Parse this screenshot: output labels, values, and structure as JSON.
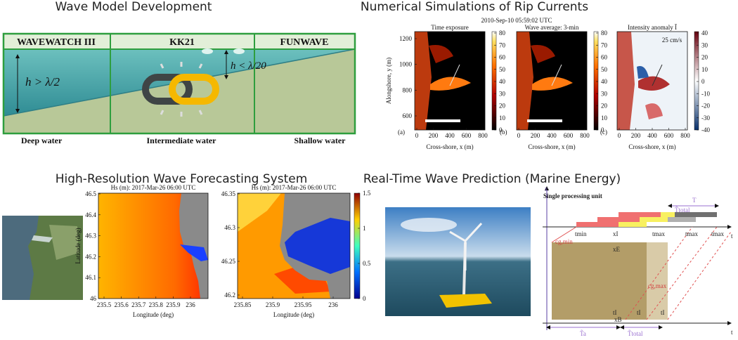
{
  "panels": {
    "wave_model": {
      "title": "Wave Model Development",
      "columns": [
        "WAVEWATCH III",
        "KK21",
        "FUNWAVE"
      ],
      "depth_labels": [
        "h > λ/2",
        "h < λ/20"
      ],
      "zones": [
        "Deep water",
        "Intermediate water",
        "Shallow water"
      ]
    },
    "rip_currents": {
      "title": "Numerical Simulations of Rip Currents",
      "timestamp": "2010-Sep-10 05:59:02 UTC",
      "subplots": [
        {
          "title": "Time exposure",
          "letter": "(a)"
        },
        {
          "title": "Wave average: 3-min",
          "letter": "(b)"
        },
        {
          "title": "Intensity anomaly Ī",
          "letter": "(c)"
        }
      ],
      "y_label": "Alongshore, y (m)",
      "x_label": "Cross-shore, x (m)",
      "yticks": [
        600,
        800,
        1000,
        1200
      ],
      "xticks": [
        0,
        200,
        400,
        600,
        800
      ],
      "colorbar_ticks": [
        0,
        10,
        20,
        30,
        40,
        50,
        60,
        70,
        80
      ],
      "anomaly_ticks": [
        -40,
        -30,
        -20,
        -10,
        0,
        10,
        20,
        30,
        40
      ],
      "scale_label": "25 cm/s"
    },
    "forecast": {
      "title": "High-Resolution Wave Forecasting System",
      "map1": {
        "title": "Hs (m): 2017-Mar-26 06:00 UTC",
        "y_label": "Latitude (deg)",
        "x_label": "Longitude (deg)",
        "yticks": [
          46,
          46.1,
          46.2,
          46.3,
          46.4,
          46.5
        ],
        "xticks": [
          235.5,
          235.6,
          235.7,
          235.8,
          235.9,
          236
        ]
      },
      "map2": {
        "title": "Hs (m): 2017-Mar-26 06:00 UTC",
        "x_label": "Longitude (deg)",
        "yticks": [
          46.2,
          46.25,
          46.3,
          46.35
        ],
        "xticks": [
          235.85,
          235.9,
          235.95,
          236
        ],
        "colorbar_ticks": [
          0,
          0.5,
          1,
          1.5
        ]
      }
    },
    "marine_energy": {
      "title": "Real-Time Wave Prediction (Marine Energy)",
      "diagram": {
        "unit_label": "Single processing unit",
        "axis_x": "x",
        "axis_t": "t",
        "T": "T",
        "T_total": "T̃total",
        "t_min": "tmin",
        "x_I": "xI",
        "t_max": "tmax",
        "cg_min": "cg,min",
        "x_E": "xE",
        "cg_max": "cg,max",
        "t_I": "tI",
        "T_a": "T̃a",
        "x_B": "xB"
      }
    }
  }
}
